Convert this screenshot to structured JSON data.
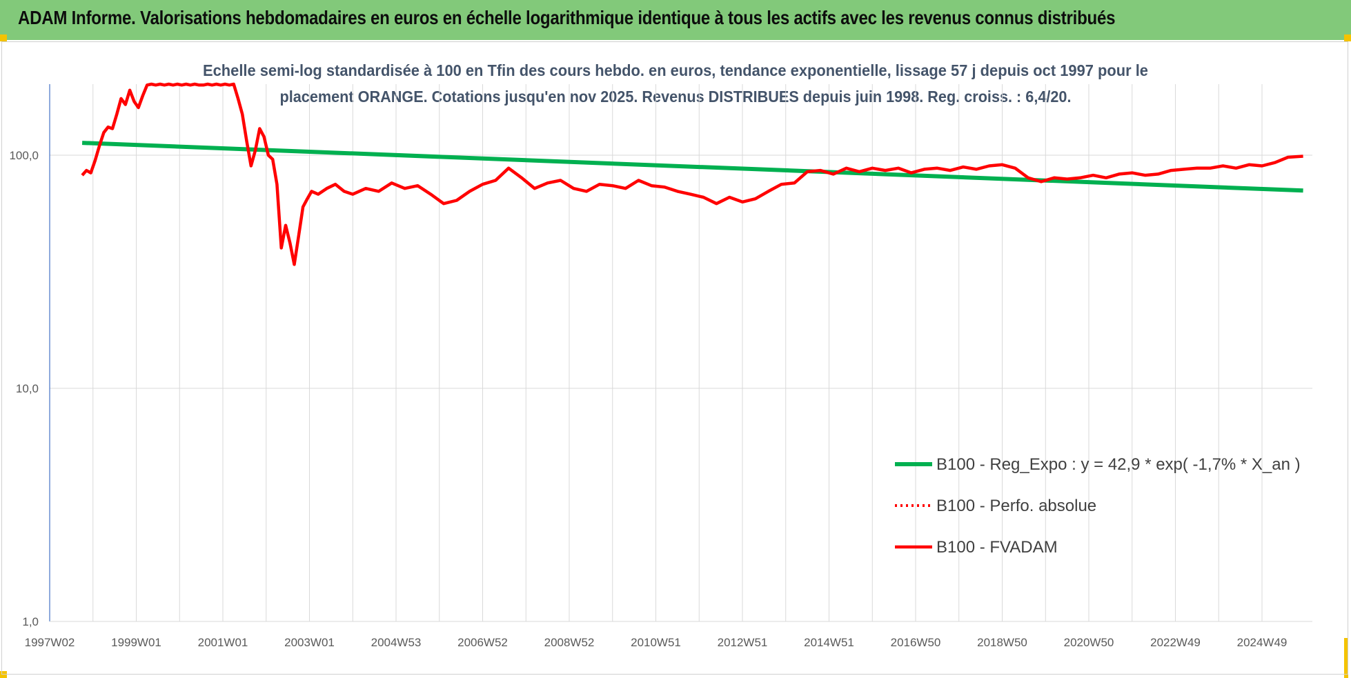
{
  "banner": {
    "title": "ADAM Informe. Valorisations hebdomadaires en euros en échelle logarithmique identique à tous les actifs avec les revenus connus distribués"
  },
  "colors": {
    "banner_bg": "#82c97a",
    "trend": "#00b050",
    "perf": "#ff0000",
    "fvadam": "#ff0000",
    "corner": "#f4c300"
  },
  "chart_data": {
    "type": "line",
    "subtitle_line1": "Echelle semi-log standardisée à 100 en Tfin des cours hebdo. en euros, tendance exponentielle, lissage 57 j depuis oct 1997 pour le",
    "subtitle_line2": "placement ORANGE. Cotations jusqu'en nov 2025. Revenus DISTRIBUES depuis juin 1998. Reg. croiss. : 6,4/20.",
    "y_scale": "log",
    "ylim": [
      1,
      200
    ],
    "y_ticks": [
      "1,0",
      "10,0",
      "100,0"
    ],
    "y_tick_values": [
      1,
      10,
      100
    ],
    "x_range": [
      1997.0,
      2025.95
    ],
    "x_ticks": [
      "1997W02",
      "1999W01",
      "2001W01",
      "2003W01",
      "2004W53",
      "2006W52",
      "2008W52",
      "2010W51",
      "2012W51",
      "2014W51",
      "2016W50",
      "2018W50",
      "2020W50",
      "2022W49",
      "2024W49"
    ],
    "x_tick_years": [
      1997.0,
      1999.0,
      2001.0,
      2003.0,
      2005.0,
      2007.0,
      2009.0,
      2011.0,
      2013.0,
      2015.0,
      2017.0,
      2019.0,
      2021.0,
      2023.0,
      2025.0
    ],
    "grid": true,
    "legend_position": "bottom-right",
    "series": [
      {
        "name": "B100 - Reg_Expo : y = 42,9 * exp( -1,7% *  X_an )",
        "style": "solid-green",
        "x": [
          1997.75,
          2025.95
        ],
        "y": [
          113,
          70.5
        ]
      },
      {
        "name": "B100 - Perfo. absolue",
        "style": "dotted-red",
        "x": [],
        "y": []
      },
      {
        "name": "B100 - FVADAM",
        "style": "solid-red",
        "x": [
          1997.75,
          1997.85,
          1997.95,
          1998.05,
          1998.15,
          1998.25,
          1998.35,
          1998.45,
          1998.55,
          1998.65,
          1998.75,
          1998.85,
          1998.95,
          1999.05,
          1999.15,
          1999.25,
          1999.35,
          1999.45,
          1999.55,
          1999.65,
          1999.75,
          1999.85,
          1999.95,
          2000.05,
          2000.15,
          2000.25,
          2000.35,
          2000.45,
          2000.55,
          2000.65,
          2000.75,
          2000.85,
          2000.95,
          2001.05,
          2001.15,
          2001.25,
          2001.35,
          2001.45,
          2001.55,
          2001.65,
          2001.75,
          2001.85,
          2001.95,
          2002.05,
          2002.15,
          2002.25,
          2002.35,
          2002.45,
          2002.55,
          2002.65,
          2002.75,
          2002.85,
          2002.95,
          2003.05,
          2003.2,
          2003.4,
          2003.6,
          2003.8,
          2004.0,
          2004.3,
          2004.6,
          2004.9,
          2005.2,
          2005.5,
          2005.8,
          2006.1,
          2006.4,
          2006.7,
          2007.0,
          2007.3,
          2007.6,
          2007.9,
          2008.2,
          2008.5,
          2008.8,
          2009.1,
          2009.4,
          2009.7,
          2010.0,
          2010.3,
          2010.6,
          2010.9,
          2011.2,
          2011.5,
          2011.8,
          2012.1,
          2012.4,
          2012.7,
          2013.0,
          2013.3,
          2013.6,
          2013.9,
          2014.2,
          2014.5,
          2014.8,
          2015.1,
          2015.4,
          2015.7,
          2016.0,
          2016.3,
          2016.6,
          2016.9,
          2017.2,
          2017.5,
          2017.8,
          2018.1,
          2018.4,
          2018.7,
          2019.0,
          2019.3,
          2019.6,
          2019.9,
          2020.2,
          2020.5,
          2020.8,
          2021.1,
          2021.4,
          2021.7,
          2022.0,
          2022.3,
          2022.6,
          2022.9,
          2023.2,
          2023.5,
          2023.8,
          2024.1,
          2024.4,
          2024.7,
          2025.0,
          2025.3,
          2025.6,
          2025.95
        ],
        "y": [
          82,
          86,
          84,
          95,
          110,
          125,
          132,
          130,
          150,
          175,
          165,
          190,
          170,
          160,
          180,
          200,
          210,
          200,
          210,
          200,
          205,
          200,
          205,
          200,
          205,
          200,
          205,
          200,
          200,
          205,
          200,
          205,
          200,
          205,
          200,
          205,
          175,
          150,
          115,
          90,
          105,
          130,
          120,
          100,
          96,
          75,
          40,
          50,
          42,
          34,
          45,
          60,
          65,
          70,
          68,
          72,
          75,
          70,
          68,
          72,
          70,
          76,
          72,
          74,
          68,
          62,
          64,
          70,
          75,
          78,
          88,
          80,
          72,
          76,
          78,
          72,
          70,
          75,
          74,
          72,
          78,
          74,
          73,
          70,
          68,
          66,
          62,
          66,
          63,
          65,
          70,
          75,
          76,
          85,
          86,
          83,
          88,
          85,
          88,
          86,
          88,
          84,
          87,
          88,
          86,
          89,
          87,
          90,
          91,
          88,
          80,
          77,
          80,
          79,
          80,
          82,
          80,
          83,
          84,
          82,
          83,
          86,
          87,
          88,
          88,
          90,
          88,
          91,
          90,
          93,
          98,
          99
        ]
      }
    ]
  }
}
